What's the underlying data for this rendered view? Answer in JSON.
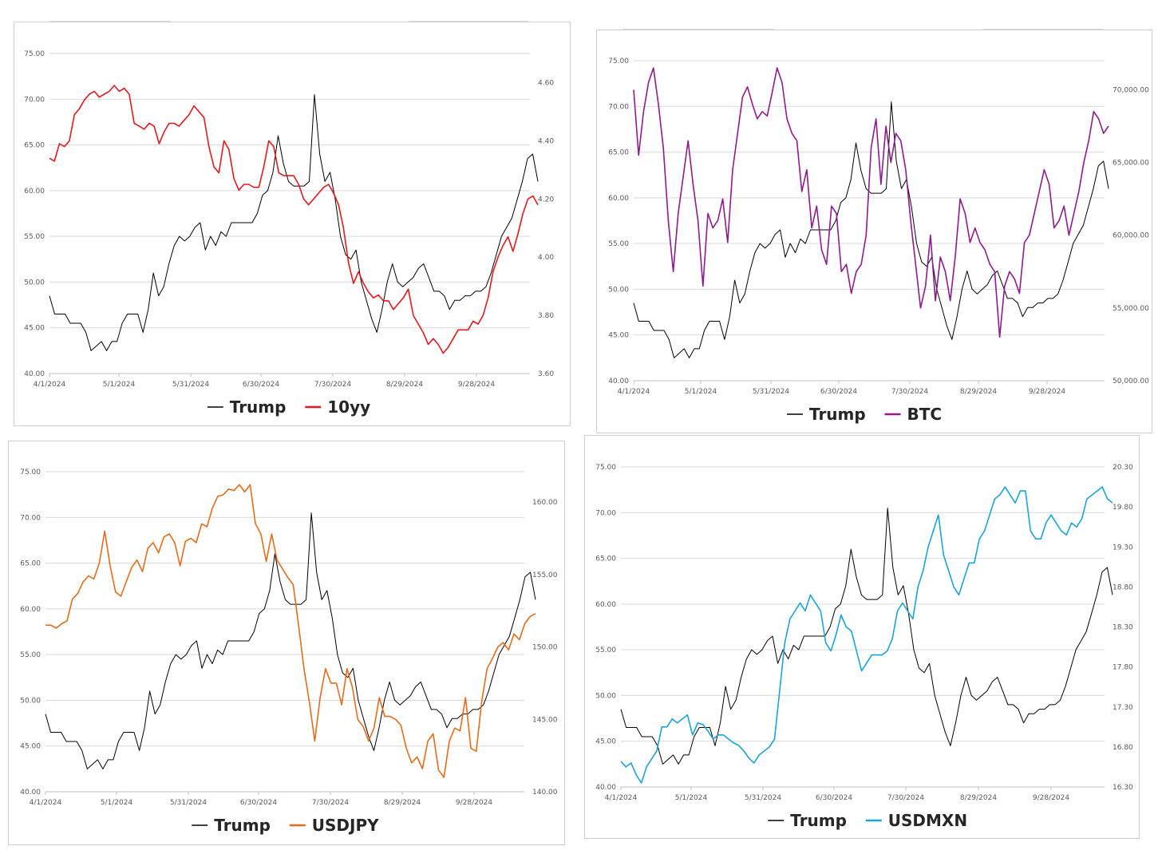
{
  "chart_data": [
    {
      "type": "line",
      "x_ticks": [
        "4/1/2024",
        "5/1/2024",
        "5/31/2024",
        "6/30/2024",
        "7/30/2024",
        "8/29/2024",
        "9/28/2024"
      ],
      "y_left_ticks": [
        "40.00",
        "45.00",
        "50.00",
        "55.00",
        "60.00",
        "65.00",
        "70.00",
        "75.00"
      ],
      "y_right_ticks": [
        "3.60",
        "3.80",
        "4.00",
        "4.20",
        "4.40",
        "4.60"
      ],
      "ylim_left": [
        40,
        75
      ],
      "ylim_right": [
        3.6,
        4.7
      ],
      "legend_position": "bottom",
      "grid": true,
      "series": [
        {
          "name": "Trump",
          "axis": "left",
          "color": "#000000",
          "values": [
            48.5,
            46.5,
            46.5,
            46.5,
            45.5,
            45.5,
            45.5,
            44.5,
            42.5,
            43,
            43.5,
            42.5,
            43.5,
            43.5,
            45.5,
            46.5,
            46.5,
            46.5,
            44.5,
            47,
            51,
            48.5,
            49.5,
            52,
            54,
            55,
            54.5,
            55,
            56,
            56.5,
            53.5,
            55,
            54,
            55.5,
            55,
            56.5,
            56.5,
            56.5,
            56.5,
            56.5,
            57.5,
            59.5,
            60,
            62,
            66,
            63,
            61,
            60.5,
            60.5,
            60.5,
            61,
            70.5,
            64,
            61,
            62,
            59,
            55,
            53,
            52.5,
            53.5,
            50,
            48,
            46,
            44.5,
            47,
            50,
            52,
            50,
            49.5,
            50,
            50.5,
            51.5,
            52,
            50.5,
            49,
            49,
            48.5,
            47,
            48,
            48,
            48.5,
            48.5,
            49,
            49,
            49.5,
            51,
            53,
            55,
            56,
            57,
            59,
            61,
            63.5,
            64,
            61
          ]
        },
        {
          "name": "10yy",
          "axis": "right",
          "color": "#e41a1c",
          "values": [
            4.34,
            4.33,
            4.39,
            4.38,
            4.4,
            4.49,
            4.51,
            4.54,
            4.56,
            4.57,
            4.55,
            4.56,
            4.57,
            4.59,
            4.57,
            4.58,
            4.56,
            4.46,
            4.45,
            4.44,
            4.46,
            4.45,
            4.39,
            4.43,
            4.46,
            4.46,
            4.45,
            4.47,
            4.49,
            4.52,
            4.5,
            4.48,
            4.38,
            4.31,
            4.29,
            4.4,
            4.37,
            4.27,
            4.23,
            4.25,
            4.25,
            4.24,
            4.24,
            4.31,
            4.4,
            4.38,
            4.29,
            4.28,
            4.28,
            4.28,
            4.25,
            4.2,
            4.18,
            4.2,
            4.22,
            4.24,
            4.25,
            4.22,
            4.18,
            4.1,
            3.98,
            3.91,
            3.95,
            3.91,
            3.88,
            3.86,
            3.87,
            3.85,
            3.85,
            3.82,
            3.84,
            3.86,
            3.89,
            3.8,
            3.77,
            3.74,
            3.7,
            3.72,
            3.7,
            3.67,
            3.69,
            3.72,
            3.75,
            3.75,
            3.75,
            3.78,
            3.77,
            3.8,
            3.86,
            3.95,
            4.0,
            4.04,
            4.07,
            4.02,
            4.08,
            4.15,
            4.2,
            4.21,
            4.18
          ]
        }
      ]
    },
    {
      "type": "line",
      "x_ticks": [
        "4/1/2024",
        "5/1/2024",
        "5/31/2024",
        "6/30/2024",
        "7/30/2024",
        "8/29/2024",
        "9/28/2024"
      ],
      "y_left_ticks": [
        "40.00",
        "45.00",
        "50.00",
        "55.00",
        "60.00",
        "65.00",
        "70.00",
        "75.00"
      ],
      "y_right_ticks": [
        "50,000.00",
        "55,000.00",
        "60,000.00",
        "65,000.00",
        "70,000.00"
      ],
      "ylim_left": [
        40,
        75
      ],
      "ylim_right": [
        50000,
        72000
      ],
      "legend_position": "bottom",
      "grid": true,
      "series": [
        {
          "name": "Trump",
          "axis": "left",
          "color": "#000000",
          "values": [
            48.5,
            46.5,
            46.5,
            46.5,
            45.5,
            45.5,
            45.5,
            44.5,
            42.5,
            43,
            43.5,
            42.5,
            43.5,
            43.5,
            45.5,
            46.5,
            46.5,
            46.5,
            44.5,
            47,
            51,
            48.5,
            49.5,
            52,
            54,
            55,
            54.5,
            55,
            56,
            56.5,
            53.5,
            55,
            54,
            55.5,
            55,
            56.5,
            56.5,
            56.5,
            56.5,
            56.5,
            57.5,
            59.5,
            60,
            62,
            66,
            63,
            61,
            60.5,
            60.5,
            60.5,
            61,
            70.5,
            64,
            61,
            62,
            59,
            55,
            53,
            52.5,
            53.5,
            50,
            48,
            46,
            44.5,
            47,
            50,
            52,
            50,
            49.5,
            50,
            50.5,
            51.5,
            52,
            50.5,
            49,
            49,
            48.5,
            47,
            48,
            48,
            48.5,
            48.5,
            49,
            49,
            49.5,
            51,
            53,
            55,
            56,
            57,
            59,
            61,
            63.5,
            64,
            61
          ]
        },
        {
          "name": "BTC",
          "axis": "right",
          "color": "#8e1b8e",
          "values": [
            70000,
            65500,
            68500,
            70500,
            71500,
            69000,
            66000,
            61000,
            57500,
            61500,
            64000,
            66500,
            63500,
            61000,
            56500,
            61500,
            60500,
            61000,
            62500,
            59500,
            64500,
            67000,
            69500,
            70200,
            69000,
            68000,
            68500,
            68200,
            69800,
            71500,
            70500,
            68000,
            67000,
            66500,
            63000,
            64500,
            60500,
            62000,
            59000,
            58000,
            62000,
            61500,
            57500,
            58000,
            56000,
            57500,
            58000,
            60000,
            66000,
            68000,
            63500,
            67500,
            65000,
            67000,
            66500,
            64500,
            61000,
            58000,
            55000,
            56500,
            60000,
            55500,
            58500,
            57500,
            55500,
            58500,
            62500,
            61500,
            59500,
            60500,
            59500,
            59000,
            58000,
            57500,
            53000,
            56500,
            57500,
            57000,
            56000,
            59500,
            60000,
            61500,
            63000,
            64500,
            63500,
            60500,
            61000,
            62000,
            60000,
            61500,
            63000,
            65000,
            66500,
            68500,
            68000,
            67000,
            67500
          ]
        }
      ]
    },
    {
      "type": "line",
      "x_ticks": [
        "4/1/2024",
        "5/1/2024",
        "5/31/2024",
        "6/30/2024",
        "7/30/2024",
        "8/29/2024",
        "9/28/2024"
      ],
      "y_left_ticks": [
        "40.00",
        "45.00",
        "50.00",
        "55.00",
        "60.00",
        "65.00",
        "70.00",
        "75.00"
      ],
      "y_right_ticks": [
        "140.00",
        "145.00",
        "150.00",
        "155.00",
        "160.00"
      ],
      "ylim_left": [
        40,
        75
      ],
      "ylim_right": [
        140,
        162.1
      ],
      "legend_position": "bottom",
      "grid": true,
      "series": [
        {
          "name": "Trump",
          "axis": "left",
          "color": "#000000",
          "values": [
            48.5,
            46.5,
            46.5,
            46.5,
            45.5,
            45.5,
            45.5,
            44.5,
            42.5,
            43,
            43.5,
            42.5,
            43.5,
            43.5,
            45.5,
            46.5,
            46.5,
            46.5,
            44.5,
            47,
            51,
            48.5,
            49.5,
            52,
            54,
            55,
            54.5,
            55,
            56,
            56.5,
            53.5,
            55,
            54,
            55.5,
            55,
            56.5,
            56.5,
            56.5,
            56.5,
            56.5,
            57.5,
            59.5,
            60,
            62,
            66,
            63,
            61,
            60.5,
            60.5,
            60.5,
            61,
            70.5,
            64,
            61,
            62,
            59,
            55,
            53,
            52.5,
            53.5,
            50,
            48,
            46,
            44.5,
            47,
            50,
            52,
            50,
            49.5,
            50,
            50.5,
            51.5,
            52,
            50.5,
            49,
            49,
            48.5,
            47,
            48,
            48,
            48.5,
            48.5,
            49,
            49,
            49.5,
            51,
            53,
            55,
            56,
            57,
            59,
            61,
            63.5,
            64,
            61
          ]
        },
        {
          "name": "USDJPY",
          "axis": "right",
          "color": "#e46c1a",
          "values": [
            151.5,
            151.5,
            151.3,
            151.6,
            151.8,
            153.3,
            153.7,
            154.5,
            154.9,
            154.7,
            155.8,
            158,
            155.6,
            153.8,
            153.5,
            154.5,
            155.5,
            156,
            155.2,
            156.8,
            157.2,
            156.5,
            157.6,
            157.8,
            157.2,
            155.6,
            157.3,
            157.5,
            157.2,
            158.5,
            158.3,
            159.6,
            160.4,
            160.5,
            160.9,
            160.8,
            161.2,
            160.7,
            161.2,
            158.5,
            157.8,
            155.9,
            157.8,
            156.0,
            155.4,
            154.8,
            154.3,
            151.5,
            148.5,
            146.2,
            143.5,
            146.5,
            148.5,
            147.5,
            147.5,
            146.0,
            148.5,
            147.2,
            145.0,
            144.5,
            143.5,
            144.4,
            146.5,
            145.2,
            145.2,
            145.0,
            144.6,
            143.0,
            142.0,
            142.4,
            141.6,
            143.5,
            144.0,
            141.5,
            141.0,
            143.5,
            144.4,
            144.2,
            146.5,
            143.0,
            142.8,
            146.2,
            148.5,
            149.2,
            150.0,
            150.3,
            149.8,
            150.9,
            150.5,
            151.6,
            152.1,
            152.3
          ]
        }
      ]
    },
    {
      "type": "line",
      "x_ticks": [
        "4/1/2024",
        "5/1/2024",
        "5/31/2024",
        "6/30/2024",
        "7/30/2024",
        "8/29/2024",
        "9/28/2024"
      ],
      "y_left_ticks": [
        "40.00",
        "45.00",
        "50.00",
        "55.00",
        "60.00",
        "65.00",
        "70.00",
        "75.00"
      ],
      "y_right_ticks": [
        "16.30",
        "16.80",
        "17.30",
        "17.80",
        "18.30",
        "18.80",
        "19.30",
        "19.80",
        "20.30"
      ],
      "ylim_left": [
        40,
        75
      ],
      "ylim_right": [
        16.3,
        20.3
      ],
      "legend_position": "bottom",
      "grid": true,
      "series": [
        {
          "name": "Trump",
          "axis": "left",
          "color": "#000000",
          "values": [
            48.5,
            46.5,
            46.5,
            46.5,
            45.5,
            45.5,
            45.5,
            44.5,
            42.5,
            43,
            43.5,
            42.5,
            43.5,
            43.5,
            45.5,
            46.5,
            46.5,
            46.5,
            44.5,
            47,
            51,
            48.5,
            49.5,
            52,
            54,
            55,
            54.5,
            55,
            56,
            56.5,
            53.5,
            55,
            54,
            55.5,
            55,
            56.5,
            56.5,
            56.5,
            56.5,
            56.5,
            57.5,
            59.5,
            60,
            62,
            66,
            63,
            61,
            60.5,
            60.5,
            60.5,
            61,
            70.5,
            64,
            61,
            62,
            59,
            55,
            53,
            52.5,
            53.5,
            50,
            48,
            46,
            44.5,
            47,
            50,
            52,
            50,
            49.5,
            50,
            50.5,
            51.5,
            52,
            50.5,
            49,
            49,
            48.5,
            47,
            48,
            48,
            48.5,
            48.5,
            49,
            49,
            49.5,
            51,
            53,
            55,
            56,
            57,
            59,
            61,
            63.5,
            64,
            61
          ]
        },
        {
          "name": "USDMXN",
          "axis": "right",
          "color": "#1aa3dd",
          "values": [
            16.62,
            16.55,
            16.6,
            16.45,
            16.35,
            16.55,
            16.65,
            16.75,
            17.05,
            17.05,
            17.15,
            17.1,
            17.15,
            17.2,
            16.95,
            17.1,
            17.08,
            17.0,
            16.9,
            16.95,
            16.95,
            16.9,
            16.85,
            16.82,
            16.75,
            16.66,
            16.6,
            16.7,
            16.75,
            16.8,
            16.9,
            17.5,
            18.1,
            18.4,
            18.5,
            18.6,
            18.5,
            18.7,
            18.6,
            18.5,
            18.1,
            18.0,
            18.2,
            18.45,
            18.3,
            18.25,
            18.0,
            17.75,
            17.85,
            17.95,
            17.95,
            17.95,
            18.0,
            18.15,
            18.5,
            18.6,
            18.5,
            18.4,
            18.8,
            19.0,
            19.3,
            19.5,
            19.7,
            19.2,
            19.0,
            18.8,
            18.7,
            18.9,
            19.1,
            19.1,
            19.4,
            19.5,
            19.7,
            19.9,
            19.95,
            20.05,
            19.95,
            19.85,
            20.0,
            20.0,
            19.5,
            19.4,
            19.4,
            19.6,
            19.7,
            19.6,
            19.5,
            19.45,
            19.6,
            19.55,
            19.65,
            19.9,
            19.95,
            20.0,
            20.05,
            19.9,
            19.85
          ]
        }
      ]
    }
  ]
}
